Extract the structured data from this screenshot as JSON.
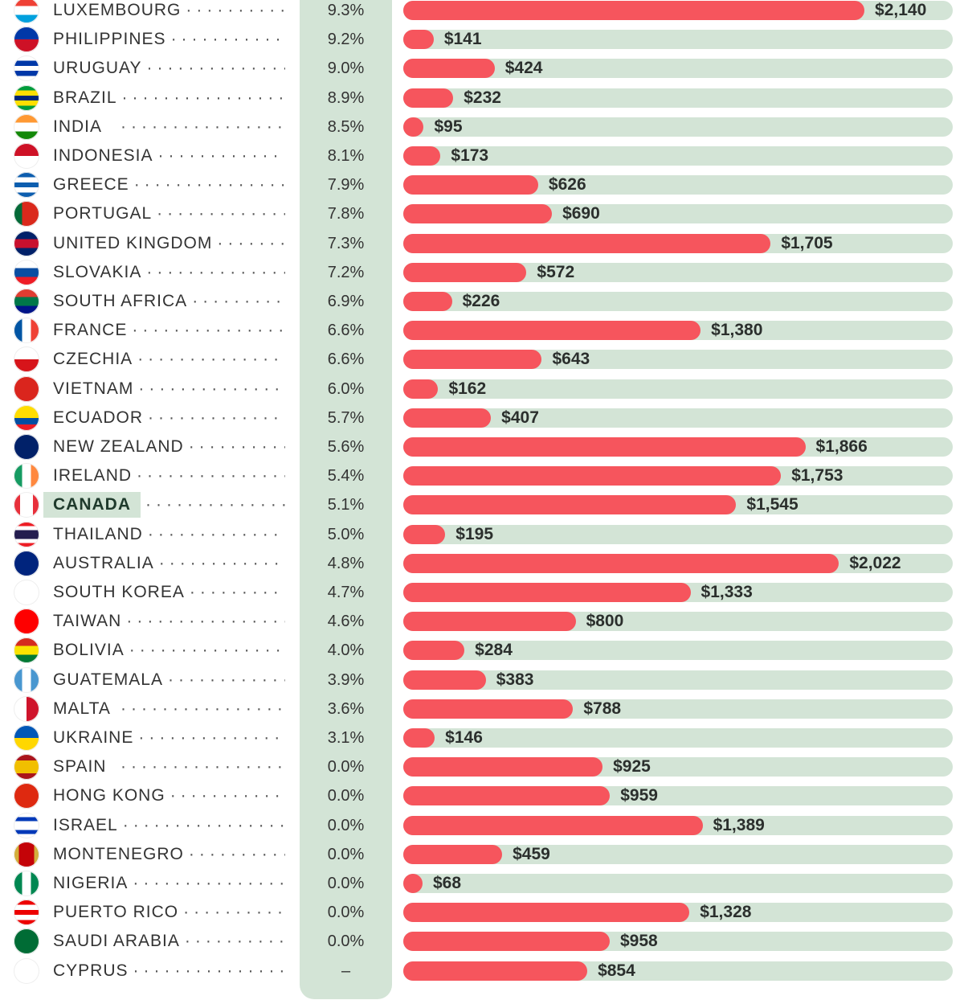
{
  "chart_data": {
    "type": "bar",
    "orientation": "horizontal",
    "bar_color": "#f6555d",
    "track_color": "#d3e4d6",
    "highlight": "CANADA",
    "xlim": [
      0,
      2550
    ],
    "rows": [
      {
        "country": "LUXEMBOURG",
        "pct": "9.3%",
        "value": 2140,
        "label": "$2,140",
        "flag": [
          "#ef4135",
          "#ffffff",
          "#00a1de"
        ]
      },
      {
        "country": "PHILIPPINES",
        "pct": "9.2%",
        "value": 141,
        "label": "$141",
        "flag": [
          "#0038a8",
          "#ce1126"
        ]
      },
      {
        "country": "URUGUAY",
        "pct": "9.0%",
        "value": 424,
        "label": "$424",
        "flag": [
          "#ffffff",
          "#0038a8",
          "#ffffff",
          "#0038a8",
          "#ffffff"
        ]
      },
      {
        "country": "BRAZIL",
        "pct": "8.9%",
        "value": 232,
        "label": "$232",
        "flag": [
          "#009c3b",
          "#ffdf00",
          "#002776",
          "#ffdf00",
          "#009c3b"
        ]
      },
      {
        "country": "INDIA",
        "pct": "8.5%",
        "value": 95,
        "label": "$95",
        "flag": [
          "#ff9933",
          "#ffffff",
          "#138808"
        ]
      },
      {
        "country": "INDONESIA",
        "pct": "8.1%",
        "value": 173,
        "label": "$173",
        "flag": [
          "#ce1126",
          "#ffffff"
        ]
      },
      {
        "country": "GREECE",
        "pct": "7.9%",
        "value": 626,
        "label": "$626",
        "flag": [
          "#0d5eaf",
          "#ffffff",
          "#0d5eaf",
          "#ffffff",
          "#0d5eaf"
        ]
      },
      {
        "country": "PORTUGAL",
        "pct": "7.8%",
        "value": 690,
        "label": "$690",
        "flag": [
          "#046a38",
          "#da291c",
          "#da291c"
        ],
        "vertical": true
      },
      {
        "country": "UNITED KINGDOM",
        "pct": "7.3%",
        "value": 1705,
        "label": "$1,705",
        "flag": [
          "#012169",
          "#c8102e",
          "#012169"
        ]
      },
      {
        "country": "SLOVAKIA",
        "pct": "7.2%",
        "value": 572,
        "label": "$572",
        "flag": [
          "#ffffff",
          "#0b4ea2",
          "#ee1c25"
        ]
      },
      {
        "country": "SOUTH AFRICA",
        "pct": "6.9%",
        "value": 226,
        "label": "$226",
        "flag": [
          "#e03c31",
          "#007749",
          "#001489"
        ]
      },
      {
        "country": "FRANCE",
        "pct": "6.6%",
        "value": 1380,
        "label": "$1,380",
        "flag": [
          "#0055a4",
          "#ffffff",
          "#ef4135"
        ],
        "vertical": true
      },
      {
        "country": "CZECHIA",
        "pct": "6.6%",
        "value": 643,
        "label": "$643",
        "flag": [
          "#ffffff",
          "#d7141a"
        ]
      },
      {
        "country": "VIETNAM",
        "pct": "6.0%",
        "value": 162,
        "label": "$162",
        "flag": [
          "#da251d"
        ]
      },
      {
        "country": "ECUADOR",
        "pct": "5.7%",
        "value": 407,
        "label": "$407",
        "flag": [
          "#ffdd00",
          "#ffdd00",
          "#034ea2",
          "#ed1c24"
        ]
      },
      {
        "country": "NEW ZEALAND",
        "pct": "5.6%",
        "value": 1866,
        "label": "$1,866",
        "flag": [
          "#012169"
        ]
      },
      {
        "country": "IRELAND",
        "pct": "5.4%",
        "value": 1753,
        "label": "$1,753",
        "flag": [
          "#169b62",
          "#ffffff",
          "#ff883e"
        ],
        "vertical": true
      },
      {
        "country": "CANADA",
        "pct": "5.1%",
        "value": 1545,
        "label": "$1,545",
        "flag": [
          "#e8303b",
          "#ffffff",
          "#ffffff",
          "#e8303b"
        ],
        "vertical": true
      },
      {
        "country": "THAILAND",
        "pct": "5.0%",
        "value": 195,
        "label": "$195",
        "flag": [
          "#ed1c24",
          "#ffffff",
          "#241d4f",
          "#241d4f",
          "#ffffff",
          "#ed1c24"
        ]
      },
      {
        "country": "AUSTRALIA",
        "pct": "4.8%",
        "value": 2022,
        "label": "$2,022",
        "flag": [
          "#00247d"
        ]
      },
      {
        "country": "SOUTH KOREA",
        "pct": "4.7%",
        "value": 1333,
        "label": "$1,333",
        "flag": [
          "#ffffff"
        ]
      },
      {
        "country": "TAIWAN",
        "pct": "4.6%",
        "value": 800,
        "label": "$800",
        "flag": [
          "#fe0000"
        ]
      },
      {
        "country": "BOLIVIA",
        "pct": "4.0%",
        "value": 284,
        "label": "$284",
        "flag": [
          "#d52b1e",
          "#f9e300",
          "#007934"
        ]
      },
      {
        "country": "GUATEMALA",
        "pct": "3.9%",
        "value": 383,
        "label": "$383",
        "flag": [
          "#4997d0",
          "#ffffff",
          "#4997d0"
        ],
        "vertical": true
      },
      {
        "country": "MALTA",
        "pct": "3.6%",
        "value": 788,
        "label": "$788",
        "flag": [
          "#ffffff",
          "#cf142b"
        ],
        "vertical": true
      },
      {
        "country": "UKRAINE",
        "pct": "3.1%",
        "value": 146,
        "label": "$146",
        "flag": [
          "#0057b7",
          "#ffd700"
        ]
      },
      {
        "country": "SPAIN",
        "pct": "0.0%",
        "value": 925,
        "label": "$925",
        "flag": [
          "#aa151b",
          "#f1bf00",
          "#f1bf00",
          "#aa151b"
        ]
      },
      {
        "country": "HONG KONG",
        "pct": "0.0%",
        "value": 959,
        "label": "$959",
        "flag": [
          "#de2910"
        ]
      },
      {
        "country": "ISRAEL",
        "pct": "0.0%",
        "value": 1389,
        "label": "$1,389",
        "flag": [
          "#ffffff",
          "#0038b8",
          "#ffffff",
          "#ffffff",
          "#0038b8",
          "#ffffff"
        ]
      },
      {
        "country": "MONTENEGRO",
        "pct": "0.0%",
        "value": 459,
        "label": "$459",
        "flag": [
          "#d3ae3b",
          "#c40308",
          "#c40308",
          "#c40308",
          "#d3ae3b"
        ],
        "vertical": true
      },
      {
        "country": "NIGERIA",
        "pct": "0.0%",
        "value": 68,
        "label": "$68",
        "flag": [
          "#008751",
          "#ffffff",
          "#008751"
        ],
        "vertical": true
      },
      {
        "country": "PUERTO RICO",
        "pct": "0.0%",
        "value": 1328,
        "label": "$1,328",
        "flag": [
          "#ed0000",
          "#ffffff",
          "#ed0000",
          "#ffffff",
          "#ed0000"
        ]
      },
      {
        "country": "SAUDI ARABIA",
        "pct": "0.0%",
        "value": 958,
        "label": "$958",
        "flag": [
          "#006c35"
        ]
      },
      {
        "country": "CYPRUS",
        "pct": "–",
        "value": 854,
        "label": "$854",
        "flag": [
          "#ffffff"
        ]
      }
    ]
  }
}
